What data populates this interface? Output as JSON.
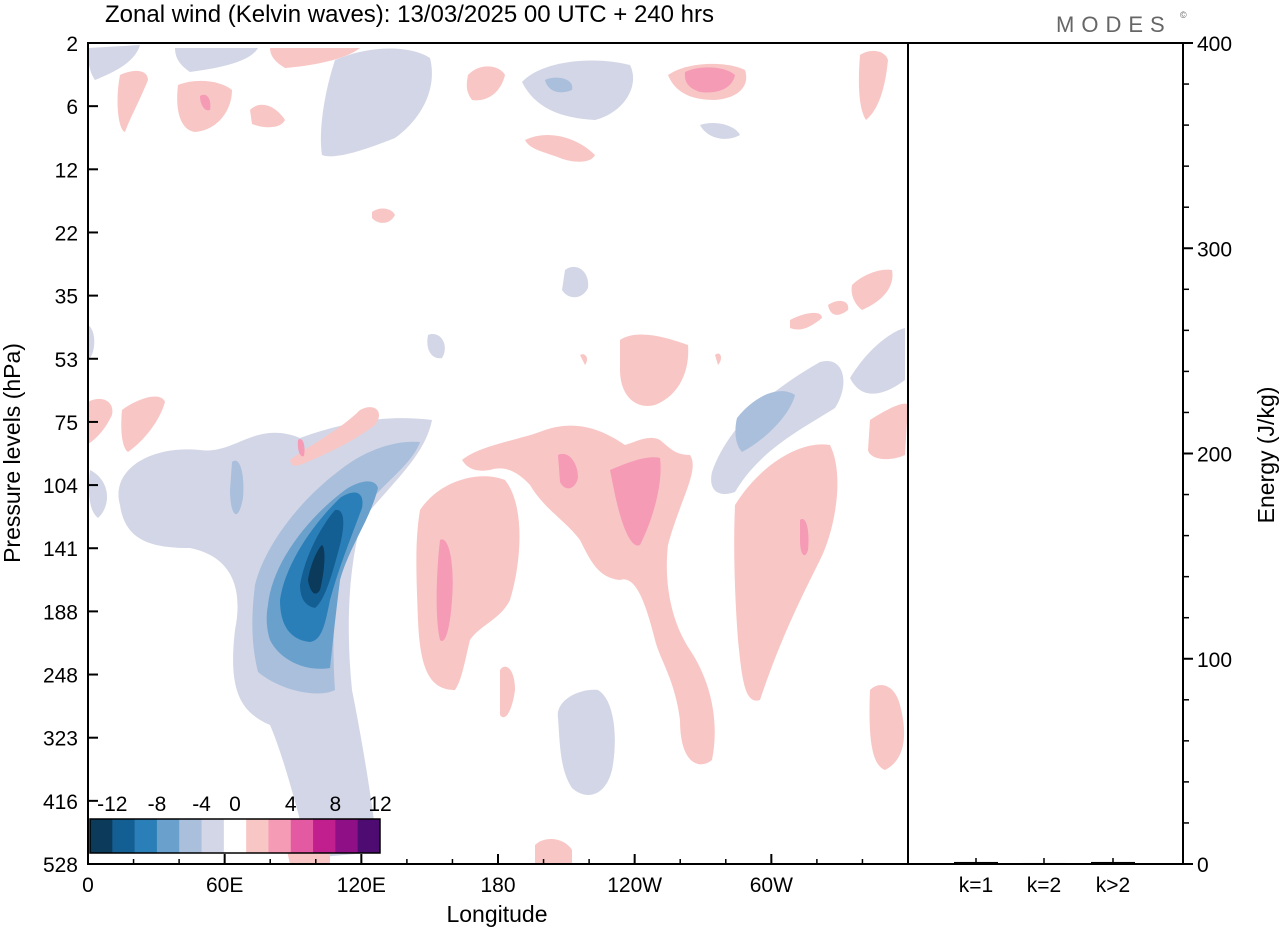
{
  "header": {
    "title": "Zonal wind (Kelvin waves):  13/03/2025  00 UTC  + 240 hrs",
    "brand": "MODES",
    "brand_mark": "©"
  },
  "chart_data": [
    {
      "type": "heatmap",
      "title": "Zonal wind (Kelvin waves):  13/03/2025  00 UTC  + 240 hrs",
      "xlabel": "Longitude",
      "ylabel": "Pressure levels (hPa)",
      "x_ticks": [
        "0",
        "60E",
        "120E",
        "180",
        "120W",
        "60W"
      ],
      "x_tick_degrees": [
        0,
        60,
        120,
        180,
        240,
        300
      ],
      "xlim": [
        0,
        360
      ],
      "y_ticks": [
        "2",
        "6",
        "12",
        "22",
        "35",
        "53",
        "75",
        "104",
        "141",
        "188",
        "248",
        "323",
        "416",
        "528"
      ],
      "y_axis": "pressure levels, top 2 hPa, bottom 528 hPa (equally spaced labels)",
      "colorbar": {
        "labels": [
          "-12",
          "-8",
          "-4",
          "0",
          "4",
          "8",
          "12"
        ],
        "levels": [
          -14,
          -12,
          -10,
          -8,
          -6,
          -4,
          -2,
          2,
          4,
          6,
          8,
          10,
          12,
          14
        ],
        "colors": [
          "#0b3a5a",
          "#135f93",
          "#2b7fb8",
          "#6aa0cc",
          "#a9bfdc",
          "#d3d6e6",
          "#ffffff",
          "#f8c7c5",
          "#f59bb6",
          "#e45aa2",
          "#c11f8e",
          "#8e0f86",
          "#4e0c72"
        ]
      },
      "features": [
        {
          "name": "negative anomaly core",
          "lon_center": 100,
          "pressure_level": "141-188 hPa",
          "min_value": -12
        },
        {
          "name": "positive anomaly",
          "lon_center": 157,
          "pressure_level": "141-188 hPa",
          "max_value": 6
        },
        {
          "name": "positive anomaly",
          "lon_center": 241,
          "pressure_level": "104-141 hPa",
          "max_value": 6
        },
        {
          "name": "positive anomaly",
          "lon_center": 314,
          "pressure_level": "104-188 hPa",
          "max_value": 6
        },
        {
          "name": "positive anomaly",
          "lon_center": 270,
          "pressure_level": "6 hPa",
          "max_value": 6
        }
      ]
    },
    {
      "type": "bar",
      "ylabel": "Energy (J/kg)",
      "categories": [
        "k=1",
        "k=2",
        "k>2"
      ],
      "values": [
        1,
        0.5,
        1
      ],
      "ylim": [
        0,
        400
      ],
      "y_ticks": [
        "0",
        "100",
        "200",
        "300",
        "400"
      ]
    }
  ]
}
